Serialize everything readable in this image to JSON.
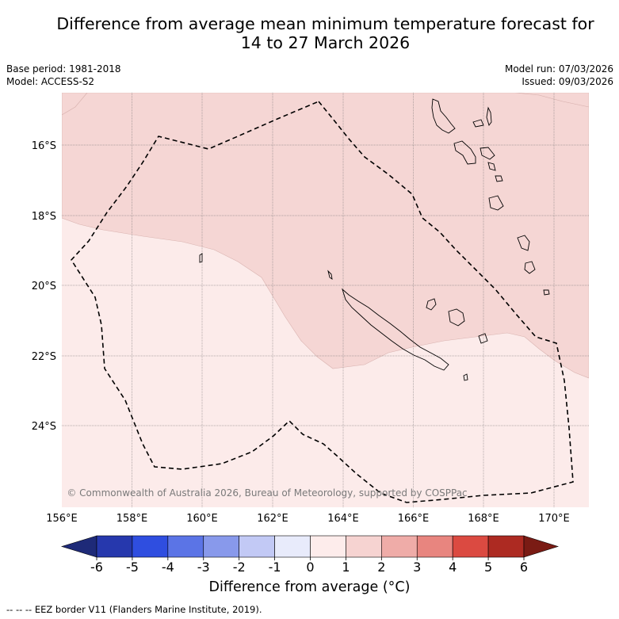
{
  "title_line1": "Difference from average mean minimum temperature forecast for",
  "title_line2": "14 to 27 March 2026",
  "base_period": "Base period: 1981-2018",
  "model": "Model: ACCESS-S2",
  "model_run": "Model run: 07/03/2026",
  "issued": "Issued: 09/03/2026",
  "copyright": "© Commonwealth of Australia 2026, Bureau of Meteorology, supported by COSPPac",
  "lat_labels": [
    "16°S",
    "18°S",
    "20°S",
    "22°S",
    "24°S"
  ],
  "lon_labels": [
    "156°E",
    "158°E",
    "160°E",
    "162°E",
    "164°E",
    "166°E",
    "168°E",
    "170°E"
  ],
  "colorbar": {
    "ticks": [
      "-6",
      "-5",
      "-4",
      "-3",
      "-2",
      "-1",
      "0",
      "1",
      "2",
      "3",
      "4",
      "5",
      "6"
    ],
    "colors": [
      "#1e2a78",
      "#2638ad",
      "#2f4ee0",
      "#5b74e6",
      "#8899eb",
      "#c2c9f5",
      "#e8ebfb",
      "#fdeceb",
      "#f6d3d1",
      "#efaca8",
      "#e8857f",
      "#db4a41",
      "#ad2a22",
      "#7a1b14"
    ],
    "title": "Difference from average (°C)",
    "tick_values": [
      -6,
      -5,
      -4,
      -3,
      -2,
      -1,
      0,
      1,
      2,
      3,
      4,
      5,
      6
    ]
  },
  "map_fill": {
    "band_0_1": "#fcebea",
    "band_1_2": "#f5d6d4"
  },
  "footnote": "-- -- -- EEZ border V11 (Flanders Marine Institute, 2019)."
}
